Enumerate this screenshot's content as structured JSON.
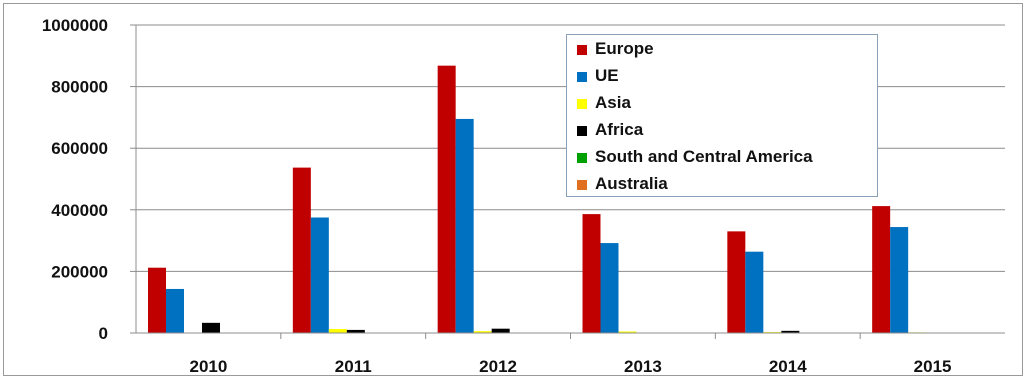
{
  "chart_data": {
    "type": "bar",
    "title": "",
    "xlabel": "",
    "ylabel": "",
    "categories": [
      "2010",
      "2011",
      "2012",
      "2013",
      "2014",
      "2015"
    ],
    "ylim": [
      0,
      1000000
    ],
    "yticks": [
      "0",
      "200000",
      "400000",
      "600000",
      "800000",
      "1000000"
    ],
    "grid": true,
    "legend_position": "top-right",
    "series": [
      {
        "name": "Europe",
        "color": "#c00000",
        "values": [
          212000,
          537000,
          868000,
          386000,
          330000,
          412000
        ]
      },
      {
        "name": "UE",
        "color": "#0070c0",
        "values": [
          143000,
          375000,
          695000,
          292000,
          264000,
          344000
        ]
      },
      {
        "name": "Asia",
        "color": "#ffff00",
        "values": [
          0,
          13000,
          6000,
          5000,
          3000,
          2000
        ]
      },
      {
        "name": "Africa",
        "color": "#000000",
        "values": [
          33000,
          10000,
          14000,
          0,
          7000,
          0
        ]
      },
      {
        "name": "South and Central America",
        "color": "#00a000",
        "values": [
          0,
          0,
          0,
          0,
          0,
          0
        ]
      },
      {
        "name": "Australia",
        "color": "#e07020",
        "values": [
          0,
          0,
          0,
          0,
          0,
          0
        ]
      }
    ]
  }
}
